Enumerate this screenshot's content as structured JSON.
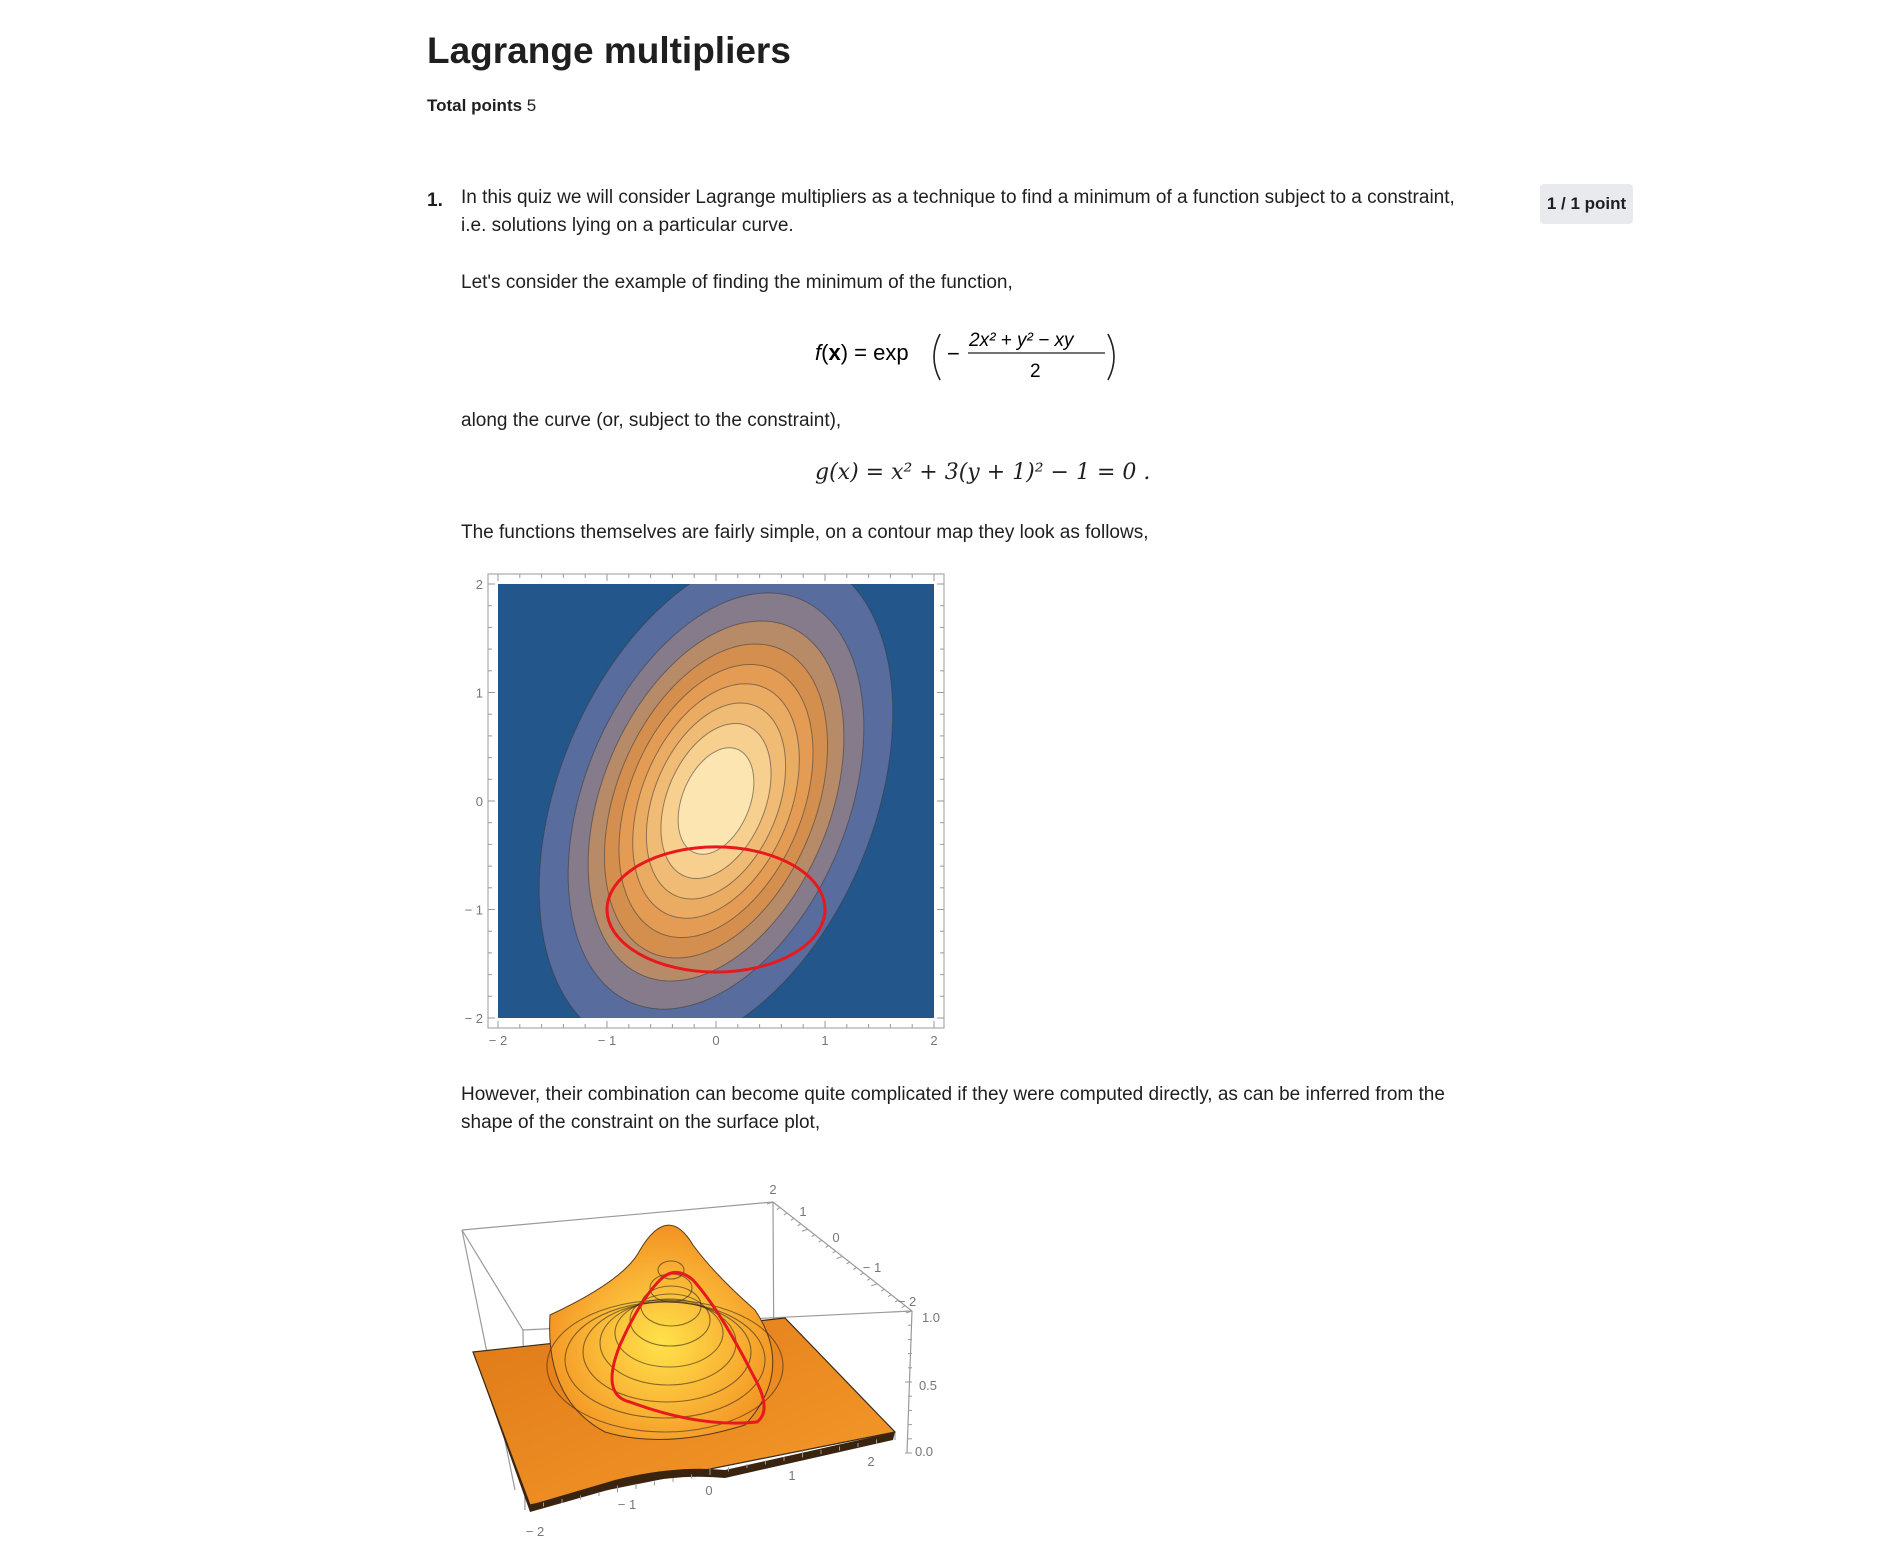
{
  "page": {
    "title": "Lagrange multipliers",
    "total_points_label": "Total points",
    "total_points_value": "5"
  },
  "question": {
    "number": "1.",
    "score": "1 / 1 point",
    "paragraph_1": "In this quiz we will consider Lagrange multipliers as a technique to find a minimum of a function subject to a constraint, i.e. solutions lying on a particular curve.",
    "paragraph_2": "Let's consider the example of finding the minimum of the function,",
    "equation_f": {
      "lhs": "f(x) = exp",
      "numerator": "2x² + y² − xy",
      "denominator": "2"
    },
    "paragraph_3": "along the curve (or, subject to the constraint),",
    "equation_g": "g(x) = x² + 3(y + 1)² − 1 = 0 .",
    "paragraph_4": "The functions themselves are fairly simple, on a contour map they look as follows,",
    "paragraph_5": "However, their combination can become quite complicated if they were computed directly, as can be inferred from the shape of the constraint on the surface plot,"
  },
  "colors": {
    "contour_background": "#23568a",
    "contour_level_1": "#586c9e",
    "contour_level_2": "#857b8a",
    "contour_level_3": "#b88b68",
    "contour_center": "#fde5b1",
    "constraint_curve": "#e8191c",
    "surface_orange": "#f08a1e",
    "surface_peak": "#ffe24a"
  },
  "chart_data": [
    {
      "type": "contour",
      "function": "f(x) = exp(-(2x² + y² − xy)/2)",
      "constraint": "x² + 3(y + 1)² − 1 = 0",
      "xlim": [
        -2,
        2
      ],
      "ylim": [
        -2,
        2
      ],
      "x_ticks": [
        "-2",
        "-1",
        "0",
        "1",
        "2"
      ],
      "y_ticks": [
        "2",
        "1",
        "0",
        "-1",
        "-2"
      ],
      "levels": [
        0.1,
        0.2,
        0.3,
        0.4,
        0.5,
        0.6,
        0.7,
        0.8,
        0.9
      ],
      "constraint_center": [
        0,
        -1
      ],
      "constraint_semi_axes": [
        1,
        0.577
      ]
    },
    {
      "type": "surface3d",
      "function": "f(x) = exp(-(2x² + y² − xy)/2)",
      "xlim": [
        -2,
        2
      ],
      "ylim": [
        -2,
        2
      ],
      "zlim": [
        0,
        1
      ],
      "x_ticks": [
        "-2",
        "-1",
        "0",
        "1",
        "2"
      ],
      "y_ticks": [
        "2",
        "1",
        "0",
        "-1",
        "-2"
      ],
      "z_ticks": [
        "1.0",
        "0.5",
        "0.0"
      ]
    }
  ]
}
